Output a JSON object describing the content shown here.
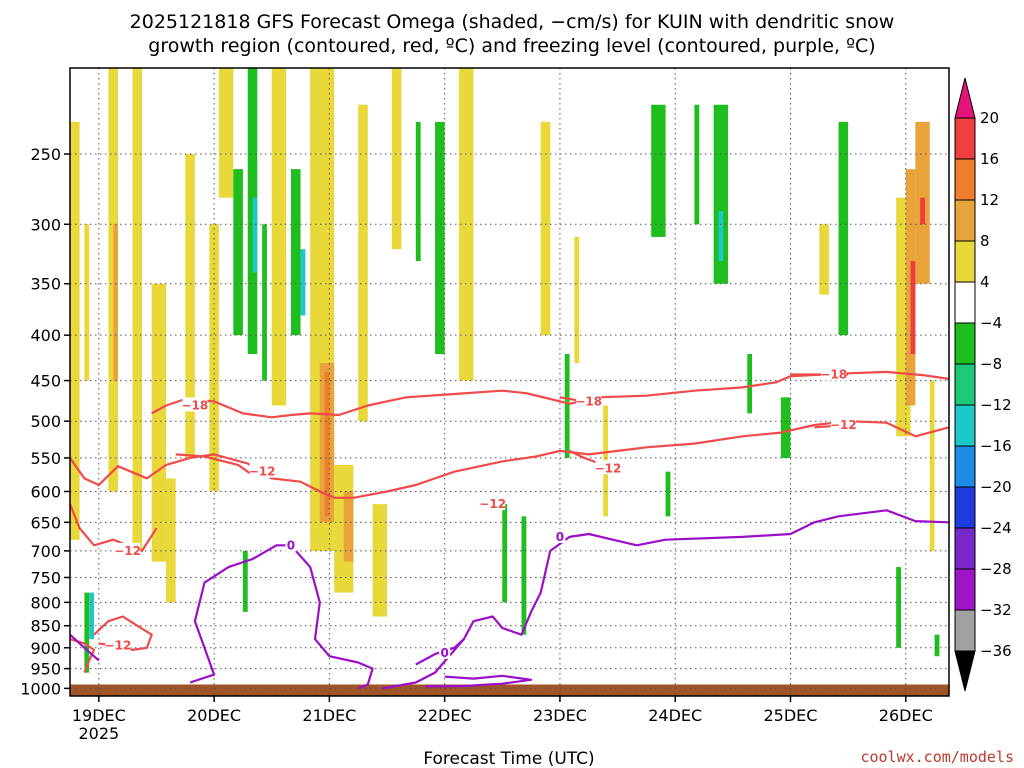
{
  "title_line1": "2025121818 GFS Forecast Omega (shaded, −cm/s) for KUIN with dendritic snow",
  "title_line2": "growth region (contoured, red, ºC) and freezing level (contoured, purple, ºC)",
  "credit": "coolwx.com/models",
  "colors": {
    "dgz_contour": "#f04a4a",
    "freezing_contour": "#9b0fc9",
    "ground": "#a05528",
    "grid": "#555555"
  },
  "chart_data": {
    "type": "heatmap",
    "xlabel": "Forecast Time (UTC)",
    "ylabel": "",
    "x_ticks": [
      {
        "label": "19DEC",
        "sublabel": "2025",
        "hours": 6
      },
      {
        "label": "20DEC",
        "hours": 30
      },
      {
        "label": "21DEC",
        "hours": 54
      },
      {
        "label": "22DEC",
        "hours": 78
      },
      {
        "label": "23DEC",
        "hours": 102
      },
      {
        "label": "24DEC",
        "hours": 126
      },
      {
        "label": "25DEC",
        "hours": 150
      },
      {
        "label": "26DEC",
        "hours": 174
      }
    ],
    "xlim_hours": [
      0,
      183
    ],
    "y_ticks": [
      250,
      300,
      350,
      400,
      450,
      500,
      550,
      600,
      650,
      700,
      750,
      800,
      850,
      900,
      950,
      1000
    ],
    "ylim_hPa": [
      200,
      1020
    ],
    "y_scale": "log-pressure",
    "grid": true,
    "colorbar": {
      "labels": [
        "20",
        "16",
        "12",
        "8",
        "4",
        "−4",
        "−8",
        "−12",
        "−16",
        "−20",
        "−24",
        "−28",
        "−32",
        "−36"
      ],
      "bins": [
        {
          "min": 16,
          "max": 20,
          "color": "#ee3e3e"
        },
        {
          "min": 12,
          "max": 16,
          "color": "#ee7e2a"
        },
        {
          "min": 8,
          "max": 12,
          "color": "#e8a43a"
        },
        {
          "min": 4,
          "max": 8,
          "color": "#e8d83a"
        },
        {
          "min": -4,
          "max": 4,
          "color": "#ffffff"
        },
        {
          "min": -8,
          "max": -4,
          "color": "#1ebe1e"
        },
        {
          "min": -12,
          "max": -8,
          "color": "#1ec878"
        },
        {
          "min": -16,
          "max": -12,
          "color": "#1ec8c8"
        },
        {
          "min": -20,
          "max": -16,
          "color": "#1e8ce6"
        },
        {
          "min": -24,
          "max": -20,
          "color": "#1e3cdc"
        },
        {
          "min": -28,
          "max": -24,
          "color": "#7828c8"
        },
        {
          "min": -32,
          "max": -28,
          "color": "#a014c8"
        },
        {
          "min": -36,
          "max": -32,
          "color": "#a0a0a0"
        }
      ],
      "top_arrow_color": "#e6147a",
      "bottom_arrow_color": "#000000"
    },
    "omega_cells": [
      {
        "t0": 0,
        "t1": 2,
        "p0": 230,
        "p1": 680,
        "v": 5
      },
      {
        "t0": 3,
        "t1": 4,
        "p0": 300,
        "p1": 450,
        "v": 6
      },
      {
        "t0": 3,
        "t1": 4,
        "p0": 780,
        "p1": 960,
        "v": -6
      },
      {
        "t0": 4,
        "t1": 5,
        "p0": 780,
        "p1": 880,
        "v": -13
      },
      {
        "t0": 8,
        "t1": 10,
        "p0": 200,
        "p1": 600,
        "v": 5
      },
      {
        "t0": 9,
        "t1": 10,
        "p0": 300,
        "p1": 450,
        "v": 10
      },
      {
        "t0": 13,
        "t1": 15,
        "p0": 200,
        "p1": 700,
        "v": 5
      },
      {
        "t0": 17,
        "t1": 20,
        "p0": 350,
        "p1": 720,
        "v": 5
      },
      {
        "t0": 20,
        "t1": 22,
        "p0": 580,
        "p1": 800,
        "v": 5
      },
      {
        "t0": 24,
        "t1": 26,
        "p0": 250,
        "p1": 550,
        "v": 5
      },
      {
        "t0": 29,
        "t1": 31,
        "p0": 300,
        "p1": 600,
        "v": 5
      },
      {
        "t0": 31,
        "t1": 34,
        "p0": 200,
        "p1": 280,
        "v": 5
      },
      {
        "t0": 34,
        "t1": 36,
        "p0": 260,
        "p1": 400,
        "v": -6
      },
      {
        "t0": 37,
        "t1": 39,
        "p0": 200,
        "p1": 420,
        "v": -6
      },
      {
        "t0": 38,
        "t1": 39,
        "p0": 280,
        "p1": 340,
        "v": -14
      },
      {
        "t0": 40,
        "t1": 41,
        "p0": 300,
        "p1": 450,
        "v": -6
      },
      {
        "t0": 36,
        "t1": 37,
        "p0": 700,
        "p1": 820,
        "v": -6
      },
      {
        "t0": 42,
        "t1": 45,
        "p0": 200,
        "p1": 480,
        "v": 5
      },
      {
        "t0": 46,
        "t1": 48,
        "p0": 260,
        "p1": 400,
        "v": -6
      },
      {
        "t0": 48,
        "t1": 49,
        "p0": 320,
        "p1": 380,
        "v": -15
      },
      {
        "t0": 50,
        "t1": 55,
        "p0": 200,
        "p1": 700,
        "v": 5
      },
      {
        "t0": 52,
        "t1": 55,
        "p0": 430,
        "p1": 650,
        "v": 10
      },
      {
        "t0": 53,
        "t1": 54,
        "p0": 440,
        "p1": 640,
        "v": 15
      },
      {
        "t0": 55,
        "t1": 59,
        "p0": 560,
        "p1": 780,
        "v": 5
      },
      {
        "t0": 57,
        "t1": 59,
        "p0": 600,
        "p1": 720,
        "v": 9
      },
      {
        "t0": 60,
        "t1": 62,
        "p0": 220,
        "p1": 500,
        "v": 5
      },
      {
        "t0": 63,
        "t1": 66,
        "p0": 620,
        "p1": 830,
        "v": 5
      },
      {
        "t0": 67,
        "t1": 69,
        "p0": 200,
        "p1": 320,
        "v": 5
      },
      {
        "t0": 72,
        "t1": 73,
        "p0": 230,
        "p1": 330,
        "v": -6
      },
      {
        "t0": 76,
        "t1": 78,
        "p0": 230,
        "p1": 420,
        "v": -6
      },
      {
        "t0": 81,
        "t1": 84,
        "p0": 200,
        "p1": 450,
        "v": 5
      },
      {
        "t0": 90,
        "t1": 91,
        "p0": 620,
        "p1": 800,
        "v": -6
      },
      {
        "t0": 94,
        "t1": 95,
        "p0": 640,
        "p1": 870,
        "v": -6
      },
      {
        "t0": 98,
        "t1": 100,
        "p0": 230,
        "p1": 400,
        "v": 5
      },
      {
        "t0": 103,
        "t1": 104,
        "p0": 420,
        "p1": 550,
        "v": -6
      },
      {
        "t0": 105,
        "t1": 106,
        "p0": 310,
        "p1": 430,
        "v": 5
      },
      {
        "t0": 111,
        "t1": 112,
        "p0": 480,
        "p1": 640,
        "v": 5
      },
      {
        "t0": 121,
        "t1": 124,
        "p0": 220,
        "p1": 310,
        "v": -6
      },
      {
        "t0": 124,
        "t1": 125,
        "p0": 570,
        "p1": 640,
        "v": -6
      },
      {
        "t0": 130,
        "t1": 131,
        "p0": 220,
        "p1": 300,
        "v": -6
      },
      {
        "t0": 134,
        "t1": 137,
        "p0": 220,
        "p1": 350,
        "v": -6
      },
      {
        "t0": 135,
        "t1": 136,
        "p0": 290,
        "p1": 330,
        "v": -13
      },
      {
        "t0": 141,
        "t1": 142,
        "p0": 420,
        "p1": 490,
        "v": -6
      },
      {
        "t0": 148,
        "t1": 150,
        "p0": 470,
        "p1": 550,
        "v": -6
      },
      {
        "t0": 156,
        "t1": 158,
        "p0": 300,
        "p1": 360,
        "v": 5
      },
      {
        "t0": 160,
        "t1": 162,
        "p0": 230,
        "p1": 400,
        "v": -6
      },
      {
        "t0": 172,
        "t1": 175,
        "p0": 280,
        "p1": 520,
        "v": 5
      },
      {
        "t0": 174,
        "t1": 176,
        "p0": 260,
        "p1": 480,
        "v": 10
      },
      {
        "t0": 175,
        "t1": 176,
        "p0": 330,
        "p1": 420,
        "v": 16
      },
      {
        "t0": 176,
        "t1": 179,
        "p0": 230,
        "p1": 350,
        "v": 9
      },
      {
        "t0": 177,
        "t1": 178,
        "p0": 280,
        "p1": 300,
        "v": 17
      },
      {
        "t0": 179,
        "t1": 180,
        "p0": 450,
        "p1": 700,
        "v": 5
      },
      {
        "t0": 172,
        "t1": 173,
        "p0": 730,
        "p1": 900,
        "v": -6
      },
      {
        "t0": 180,
        "t1": 181,
        "p0": 870,
        "p1": 920,
        "v": -6
      }
    ],
    "contours": [
      {
        "name": "-18",
        "kind": "dgz",
        "label": "−18",
        "label_at": {
          "t": 26,
          "p": 480
        },
        "points": [
          [
            17,
            490
          ],
          [
            20,
            480
          ],
          [
            24,
            472
          ],
          [
            30,
            475
          ],
          [
            36,
            490
          ],
          [
            42,
            495
          ],
          [
            46,
            492
          ],
          [
            50,
            490
          ],
          [
            56,
            492
          ],
          [
            62,
            480
          ],
          [
            70,
            470
          ],
          [
            80,
            466
          ],
          [
            90,
            462
          ],
          [
            95,
            465
          ],
          [
            100,
            472
          ],
          [
            104,
            478
          ],
          [
            110,
            470
          ],
          [
            120,
            468
          ],
          [
            130,
            462
          ],
          [
            140,
            458
          ],
          [
            147,
            452
          ],
          [
            150,
            445
          ],
          [
            160,
            442
          ],
          [
            170,
            440
          ],
          [
            178,
            444
          ],
          [
            183,
            448
          ]
        ]
      },
      {
        "name": "-12",
        "kind": "dgz",
        "label": "−12",
        "label_at": {
          "t": 88,
          "p": 620
        },
        "points": [
          [
            0,
            550
          ],
          [
            3,
            580
          ],
          [
            6,
            590
          ],
          [
            10,
            562
          ],
          [
            16,
            580
          ],
          [
            20,
            560
          ],
          [
            25,
            550
          ],
          [
            30,
            545
          ],
          [
            37,
            558
          ],
          [
            42,
            580
          ],
          [
            48,
            585
          ],
          [
            52,
            600
          ],
          [
            55,
            610
          ],
          [
            59,
            610
          ],
          [
            66,
            600
          ],
          [
            72,
            590
          ],
          [
            80,
            570
          ],
          [
            90,
            555
          ],
          [
            97,
            548
          ],
          [
            102,
            540
          ],
          [
            108,
            545
          ],
          [
            114,
            540
          ],
          [
            120,
            535
          ],
          [
            130,
            530
          ],
          [
            140,
            520
          ],
          [
            148,
            515
          ],
          [
            155,
            505
          ],
          [
            162,
            500
          ],
          [
            170,
            502
          ],
          [
            176,
            520
          ],
          [
            183,
            508
          ]
        ]
      },
      {
        "name": "-12b",
        "kind": "dgz",
        "label": "−12",
        "label_at": {
          "t": 40,
          "p": 570
        },
        "points": [
          [
            22,
            545
          ],
          [
            28,
            548
          ],
          [
            35,
            560
          ],
          [
            38,
            575
          ]
        ]
      },
      {
        "name": "-12c",
        "kind": "dgz",
        "label": "−12",
        "label_at": {
          "t": 112,
          "p": 565
        },
        "points": [
          [
            104,
            540
          ],
          [
            107,
            550
          ],
          [
            111,
            560
          ]
        ]
      },
      {
        "name": "-12d",
        "kind": "dgz",
        "label": "−12",
        "label_at": {
          "t": 12,
          "p": 700
        },
        "points": [
          [
            0,
            620
          ],
          [
            2,
            660
          ],
          [
            5,
            690
          ],
          [
            9,
            680
          ],
          [
            15,
            700
          ],
          [
            18,
            660
          ]
        ]
      },
      {
        "name": "-12e",
        "kind": "dgz",
        "label": "−12",
        "label_at": {
          "t": 10,
          "p": 895
        },
        "points": [
          [
            5,
            870
          ],
          [
            8,
            840
          ],
          [
            11,
            830
          ],
          [
            14,
            850
          ],
          [
            17,
            870
          ],
          [
            16,
            900
          ],
          [
            13,
            905
          ],
          [
            9,
            895
          ],
          [
            6,
            890
          ]
        ]
      },
      {
        "name": "-12f",
        "kind": "dgz",
        "label": "",
        "label_at": null,
        "points": [
          [
            0,
            880
          ],
          [
            3,
            890
          ],
          [
            5,
            905
          ],
          [
            4,
            930
          ],
          [
            3,
            960
          ]
        ]
      },
      {
        "name": "-18b",
        "kind": "dgz",
        "label": "−18",
        "label_at": {
          "t": 108,
          "p": 475
        },
        "points": [
          [
            102,
            470
          ],
          [
            106,
            474
          ],
          [
            110,
            478
          ]
        ]
      },
      {
        "name": "-18c",
        "kind": "dgz",
        "label": "−18",
        "label_at": {
          "t": 159,
          "p": 443
        },
        "points": [
          [
            150,
            443
          ],
          [
            155,
            443
          ],
          [
            162,
            443
          ]
        ]
      },
      {
        "name": "-12g",
        "kind": "dgz",
        "label": "−12",
        "label_at": {
          "t": 161,
          "p": 505
        },
        "points": [
          [
            155,
            508
          ],
          [
            162,
            505
          ]
        ]
      },
      {
        "name": "0a",
        "kind": "freezing",
        "label": "0",
        "label_at": {
          "t": 46,
          "p": 690
        },
        "points": [
          [
            25,
            985
          ],
          [
            30,
            965
          ],
          [
            28,
            900
          ],
          [
            26,
            840
          ],
          [
            28,
            760
          ],
          [
            33,
            730
          ],
          [
            38,
            715
          ],
          [
            43,
            690
          ],
          [
            46,
            690
          ],
          [
            50,
            730
          ],
          [
            52,
            800
          ],
          [
            51,
            880
          ],
          [
            54,
            920
          ],
          [
            60,
            935
          ],
          [
            63,
            950
          ],
          [
            62,
            990
          ],
          [
            60,
            1000
          ]
        ]
      },
      {
        "name": "0b",
        "kind": "freezing",
        "label": "0",
        "label_at": {
          "t": 102,
          "p": 675
        },
        "points": [
          [
            65,
            1000
          ],
          [
            72,
            985
          ],
          [
            76,
            960
          ],
          [
            82,
            880
          ],
          [
            84,
            840
          ],
          [
            88,
            830
          ],
          [
            90,
            855
          ],
          [
            94,
            870
          ],
          [
            96,
            820
          ],
          [
            98,
            780
          ],
          [
            100,
            700
          ],
          [
            104,
            675
          ],
          [
            108,
            670
          ],
          [
            113,
            680
          ],
          [
            118,
            690
          ],
          [
            124,
            680
          ],
          [
            140,
            675
          ],
          [
            150,
            670
          ],
          [
            155,
            650
          ],
          [
            160,
            640
          ],
          [
            170,
            630
          ],
          [
            176,
            648
          ],
          [
            183,
            650
          ]
        ]
      },
      {
        "name": "0c",
        "kind": "freezing",
        "label": "0",
        "label_at": {
          "t": 78,
          "p": 912
        },
        "points": [
          [
            72,
            940
          ],
          [
            76,
            915
          ],
          [
            80,
            900
          ],
          [
            82,
            880
          ]
        ]
      },
      {
        "name": "0d",
        "kind": "freezing",
        "label": "",
        "label_at": null,
        "points": [
          [
            78,
            970
          ],
          [
            84,
            975
          ],
          [
            90,
            968
          ],
          [
            96,
            978
          ],
          [
            90,
            988
          ],
          [
            82,
            994
          ],
          [
            74,
            995
          ]
        ]
      },
      {
        "name": "0e",
        "kind": "freezing",
        "label": "",
        "label_at": null,
        "points": [
          [
            0,
            870
          ],
          [
            3,
            900
          ],
          [
            6,
            930
          ]
        ]
      }
    ]
  }
}
